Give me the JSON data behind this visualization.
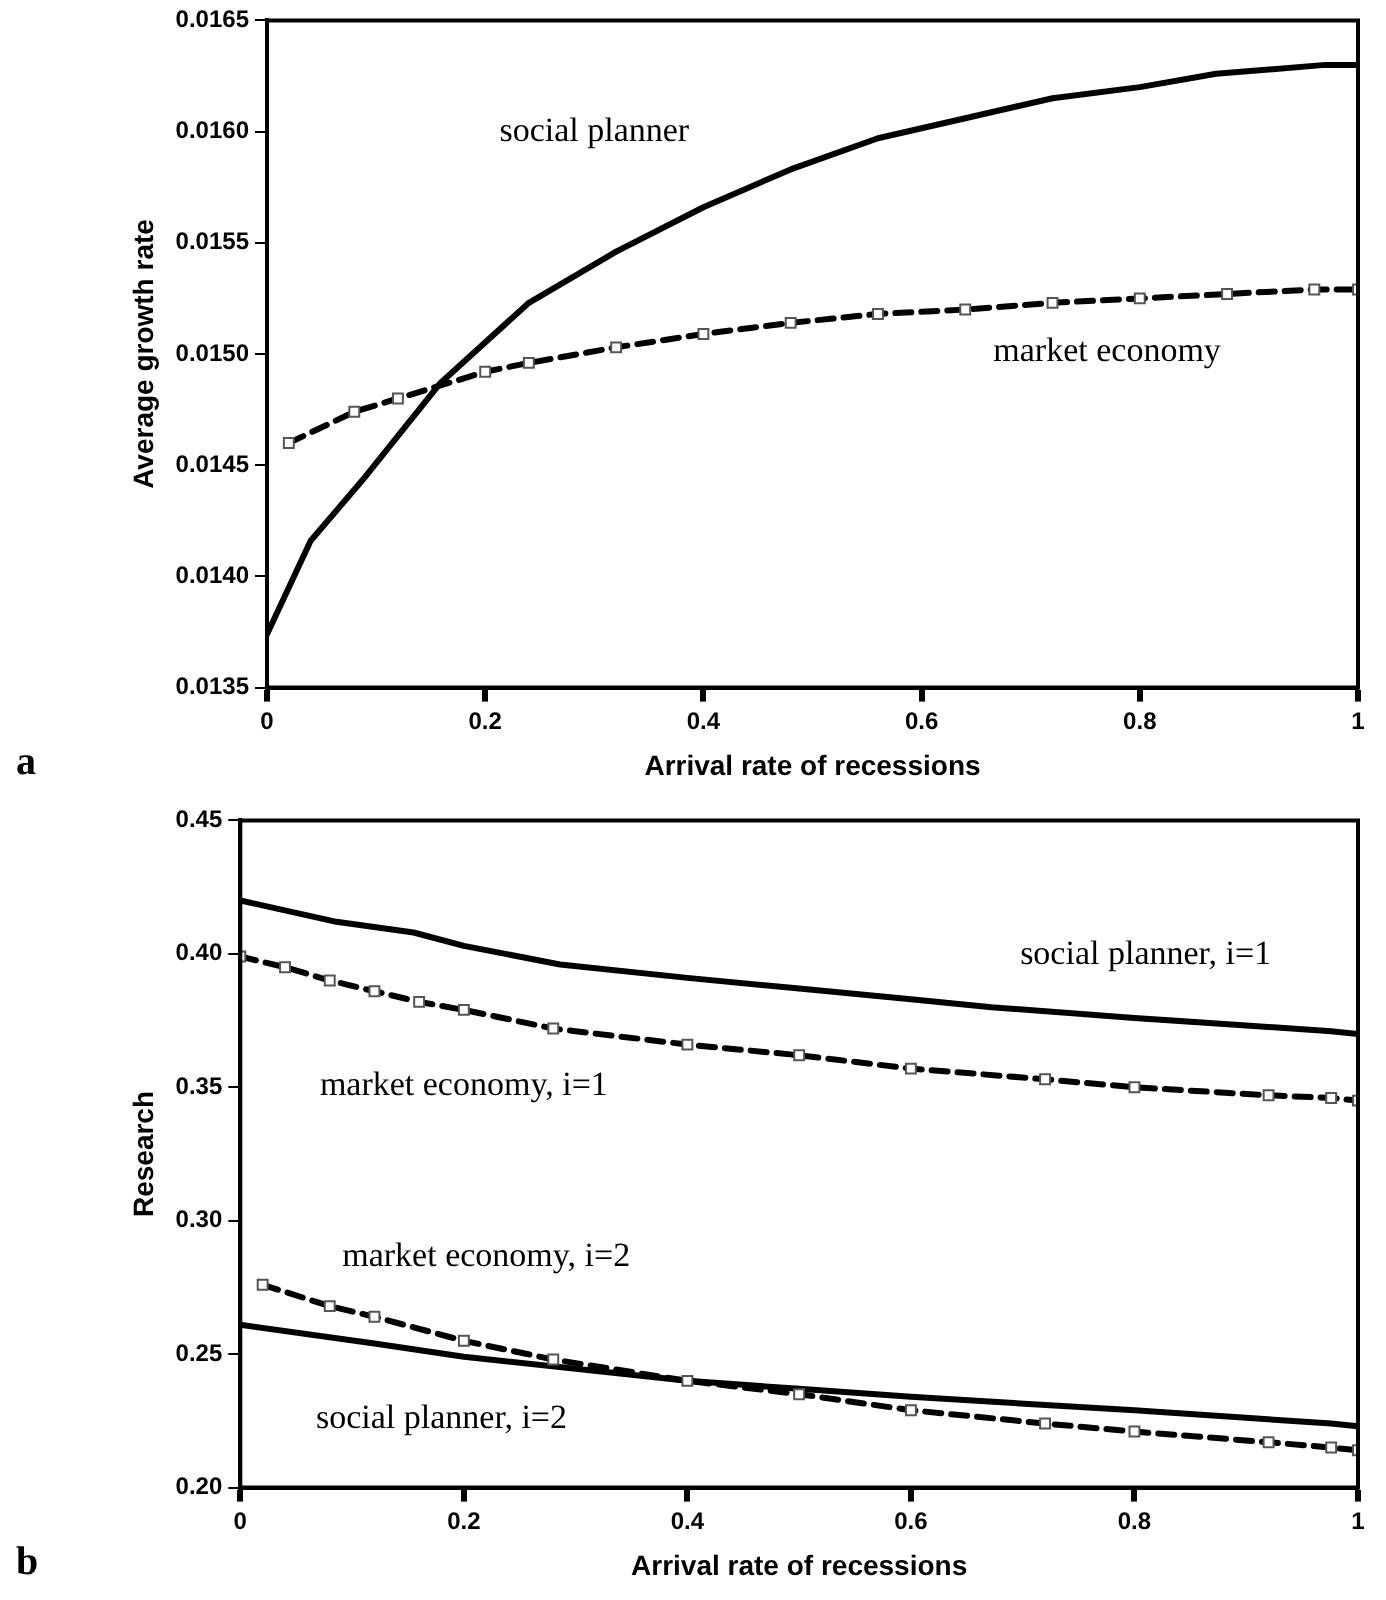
{
  "chart_data": [
    {
      "type": "line",
      "xlabel": "Arrival rate of recessions",
      "ylabel": "Average growth rate",
      "xlim": [
        0,
        1
      ],
      "xticks": [
        0,
        0.2,
        0.4,
        0.6,
        0.8,
        1
      ],
      "ylim": [
        0.0135,
        0.0165
      ],
      "yticks": [
        0.0135,
        {
          "value": 0.014,
          "label": "0.0140"
        },
        0.0145,
        {
          "value": 0.015,
          "label": "0.0150"
        },
        0.0155,
        {
          "value": 0.016,
          "label": "0.0160"
        },
        0.0165
      ],
      "grid": false,
      "legend": false,
      "series": [
        {
          "name": "social planner",
          "color": "#000000",
          "marker": "none",
          "line_style": "solid",
          "x": [
            0,
            0.04,
            0.087,
            0.159,
            0.24,
            0.32,
            0.4,
            0.48,
            0.56,
            0.64,
            0.72,
            0.8,
            0.87,
            0.97,
            1
          ],
          "values": [
            0.01374,
            0.01416,
            0.01443,
            0.01487,
            0.01523,
            0.01546,
            0.01566,
            0.01583,
            0.01597,
            0.01606,
            0.01615,
            0.0162,
            0.01626,
            0.0163,
            0.0163
          ]
        },
        {
          "name": "market economy",
          "color": "#000000",
          "marker": "square",
          "line_style": "dashed",
          "x": [
            0.02,
            0.08,
            0.12,
            0.2,
            0.24,
            0.32,
            0.4,
            0.48,
            0.56,
            0.64,
            0.72,
            0.8,
            0.88,
            0.96,
            1
          ],
          "values": [
            0.0146,
            0.01474,
            0.0148,
            0.01492,
            0.01496,
            0.01503,
            0.01509,
            0.01514,
            0.01518,
            0.0152,
            0.01523,
            0.01525,
            0.01527,
            0.01529,
            0.01529
          ]
        }
      ],
      "annotations": [
        "a"
      ]
    },
    {
      "type": "line",
      "xlabel": "Arrival rate of recessions",
      "ylabel": "Research",
      "xlim": [
        0,
        1
      ],
      "xticks": [
        0,
        0.2,
        0.4,
        0.6,
        0.8,
        1
      ],
      "ylim": [
        0.2,
        0.45
      ],
      "yticks": [
        {
          "value": 0.2,
          "label": "0.20"
        },
        0.25,
        {
          "value": 0.3,
          "label": "0.30"
        },
        0.35,
        {
          "value": 0.4,
          "label": "0.40"
        },
        0.45
      ],
      "grid": false,
      "legend": false,
      "series": [
        {
          "name": "social planner, i=1",
          "color": "#000000",
          "marker": "none",
          "line_style": "solid",
          "x": [
            0,
            0.086,
            0.155,
            0.2,
            0.286,
            0.4,
            0.5,
            0.6,
            0.672,
            0.8,
            0.976,
            1
          ],
          "values": [
            0.42,
            0.412,
            0.408,
            0.403,
            0.396,
            0.391,
            0.387,
            0.383,
            0.38,
            0.376,
            0.371,
            0.37
          ]
        },
        {
          "name": "market economy, i=1",
          "color": "#000000",
          "marker": "square",
          "line_style": "dashed",
          "x": [
            0,
            0.04,
            0.08,
            0.12,
            0.16,
            0.2,
            0.28,
            0.4,
            0.5,
            0.6,
            0.72,
            0.8,
            0.92,
            0.976,
            1
          ],
          "values": [
            0.399,
            0.395,
            0.39,
            0.386,
            0.382,
            0.379,
            0.372,
            0.366,
            0.362,
            0.357,
            0.353,
            0.35,
            0.347,
            0.346,
            0.345
          ]
        },
        {
          "name": "market economy, i=2",
          "color": "#000000",
          "marker": "square",
          "line_style": "dashed",
          "x": [
            0.02,
            0.08,
            0.12,
            0.2,
            0.28,
            0.4,
            0.5,
            0.6,
            0.72,
            0.8,
            0.92,
            0.976,
            1
          ],
          "values": [
            0.276,
            0.268,
            0.264,
            0.255,
            0.248,
            0.24,
            0.235,
            0.229,
            0.224,
            0.221,
            0.217,
            0.215,
            0.214
          ]
        },
        {
          "name": "social planner, i=2",
          "color": "#000000",
          "marker": "none",
          "line_style": "solid",
          "x": [
            0,
            0.12,
            0.2,
            0.4,
            0.5,
            0.6,
            0.8,
            0.976,
            1
          ],
          "values": [
            0.261,
            0.254,
            0.249,
            0.24,
            0.237,
            0.234,
            0.229,
            0.224,
            0.223
          ]
        }
      ],
      "annotations": [
        "b"
      ]
    }
  ]
}
